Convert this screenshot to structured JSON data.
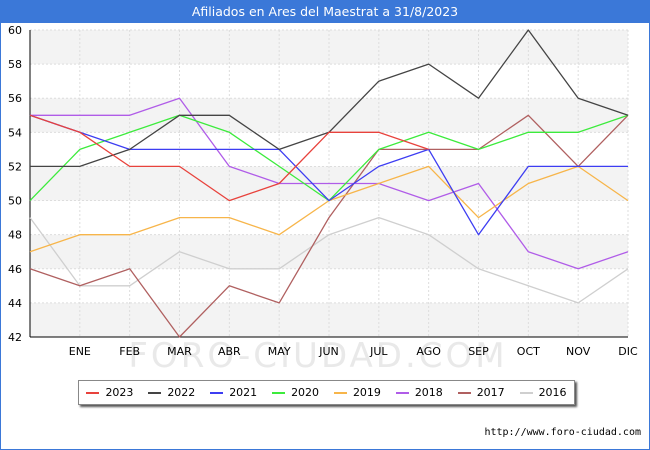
{
  "title": "Afiliados en Ares del Maestrat a 31/8/2023",
  "source": "http://www.foro-ciudad.com",
  "watermark": "FORO-CIUDAD.COM",
  "chart_data": {
    "type": "line",
    "categories": [
      "",
      "ENE",
      "FEB",
      "MAR",
      "ABR",
      "MAY",
      "JUN",
      "JUL",
      "AGO",
      "SEP",
      "OCT",
      "NOV",
      "DIC"
    ],
    "ylim": [
      42,
      60
    ],
    "yticks": [
      42,
      44,
      46,
      48,
      50,
      52,
      54,
      56,
      58,
      60
    ],
    "grid": true,
    "legend_position": "bottom",
    "series": [
      {
        "name": "2023",
        "color": "#e8423c",
        "values": [
          55,
          54,
          52,
          52,
          50,
          51,
          54,
          54,
          53,
          null,
          null,
          null,
          null
        ]
      },
      {
        "name": "2022",
        "color": "#444444",
        "values": [
          52,
          52,
          53,
          55,
          55,
          53,
          54,
          57,
          58,
          56,
          60,
          56,
          55
        ]
      },
      {
        "name": "2021",
        "color": "#3d3df2",
        "values": [
          55,
          54,
          53,
          53,
          53,
          53,
          50,
          52,
          53,
          48,
          52,
          52,
          52
        ]
      },
      {
        "name": "2020",
        "color": "#3ceb3c",
        "values": [
          50,
          53,
          54,
          55,
          54,
          52,
          50,
          53,
          54,
          53,
          54,
          54,
          55
        ]
      },
      {
        "name": "2019",
        "color": "#f7b54a",
        "values": [
          47,
          48,
          48,
          49,
          49,
          48,
          50,
          51,
          52,
          49,
          51,
          52,
          50
        ]
      },
      {
        "name": "2018",
        "color": "#b05ce8",
        "values": [
          55,
          55,
          55,
          56,
          52,
          51,
          51,
          51,
          50,
          51,
          47,
          46,
          47
        ]
      },
      {
        "name": "2017",
        "color": "#b06060",
        "values": [
          46,
          45,
          46,
          42,
          45,
          44,
          49,
          53,
          53,
          53,
          55,
          52,
          55
        ]
      },
      {
        "name": "2016",
        "color": "#cfcfcf",
        "values": [
          49,
          45,
          45,
          47,
          46,
          46,
          48,
          49,
          48,
          46,
          45,
          44,
          46
        ]
      }
    ]
  }
}
